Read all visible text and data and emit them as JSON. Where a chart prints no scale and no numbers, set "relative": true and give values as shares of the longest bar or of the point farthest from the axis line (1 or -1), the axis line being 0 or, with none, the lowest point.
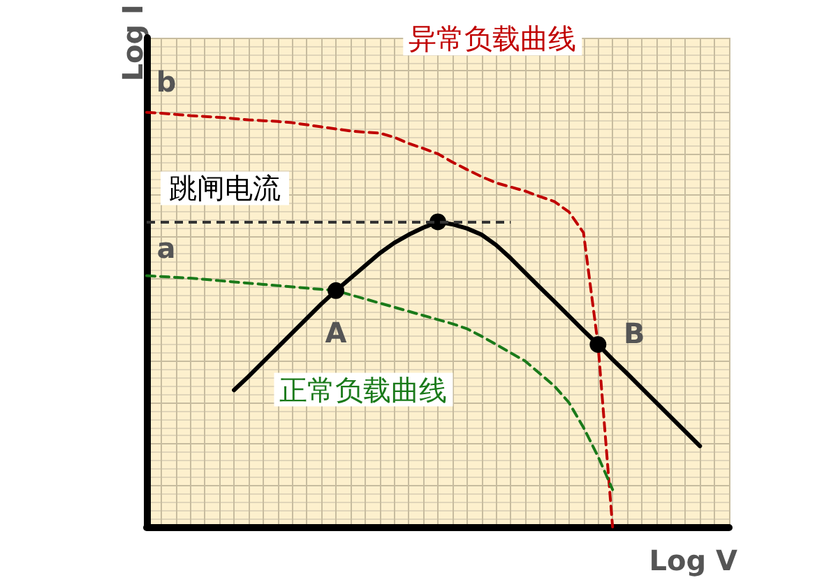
{
  "chart_data": {
    "type": "line",
    "relative": true,
    "xlabel": "Log V",
    "ylabel": "Log I",
    "grid": true,
    "categories": [
      null,
      null,
      null,
      null,
      null,
      null,
      null,
      null,
      null,
      null,
      null,
      null,
      null,
      null,
      null,
      null,
      null,
      null,
      null,
      null,
      null,
      null,
      null,
      null,
      null,
      null,
      null,
      null,
      null,
      null,
      null,
      null,
      null,
      null,
      null,
      null,
      null,
      null,
      null,
      null,
      null
    ],
    "series": [
      {
        "color": "#000000",
        "line_style": "solid",
        "values": [
          null,
          null,
          null,
          null,
          null,
          null,
          0.33,
          0.363,
          0.398,
          0.433,
          0.468,
          0.503,
          0.538,
          0.57,
          0.6,
          0.63,
          0.66,
          0.685,
          0.705,
          0.722,
          0.736,
          0.73,
          0.72,
          0.705,
          0.68,
          0.648,
          0.613,
          0.578,
          0.544,
          0.509,
          0.474,
          0.44,
          0.404,
          0.37,
          0.335,
          0.3,
          0.265,
          0.23,
          0.195,
          null,
          null
        ]
      },
      {
        "name": "异常负载曲线",
        "color": "#c00000",
        "line_style": "dashed",
        "values": [
          1.0,
          0.998,
          0.995,
          0.992,
          0.99,
          0.988,
          0.985,
          0.982,
          0.98,
          0.978,
          0.975,
          0.97,
          0.965,
          0.96,
          0.955,
          0.952,
          0.95,
          0.94,
          0.925,
          0.913,
          0.9,
          0.88,
          0.862,
          0.845,
          0.83,
          0.82,
          0.81,
          0.797,
          0.785,
          0.76,
          0.71,
          0.44,
          0,
          null,
          null,
          null,
          null,
          null,
          null,
          null,
          null
        ]
      },
      {
        "name": "正常负载曲线",
        "color": "#1a7a1a",
        "line_style": "dashed",
        "values": [
          0.606,
          0.604,
          0.602,
          0.6,
          0.597,
          0.594,
          0.591,
          0.588,
          0.585,
          0.582,
          0.579,
          0.576,
          0.573,
          0.57,
          0.56,
          0.55,
          0.54,
          0.53,
          0.52,
          0.51,
          0.5,
          0.49,
          0.478,
          0.46,
          0.44,
          0.42,
          0.4,
          0.37,
          0.34,
          0.3,
          0.24,
          0.17,
          0.09,
          null,
          null,
          null,
          null,
          null,
          null,
          null,
          null
        ]
      }
    ],
    "ref_lines": [
      {
        "axis": "y",
        "value": 0.736,
        "label": "跳闸电流",
        "color": "#333333",
        "line_style": "dashed"
      }
    ],
    "annotations": [
      "b",
      "a",
      "A",
      "B"
    ]
  }
}
